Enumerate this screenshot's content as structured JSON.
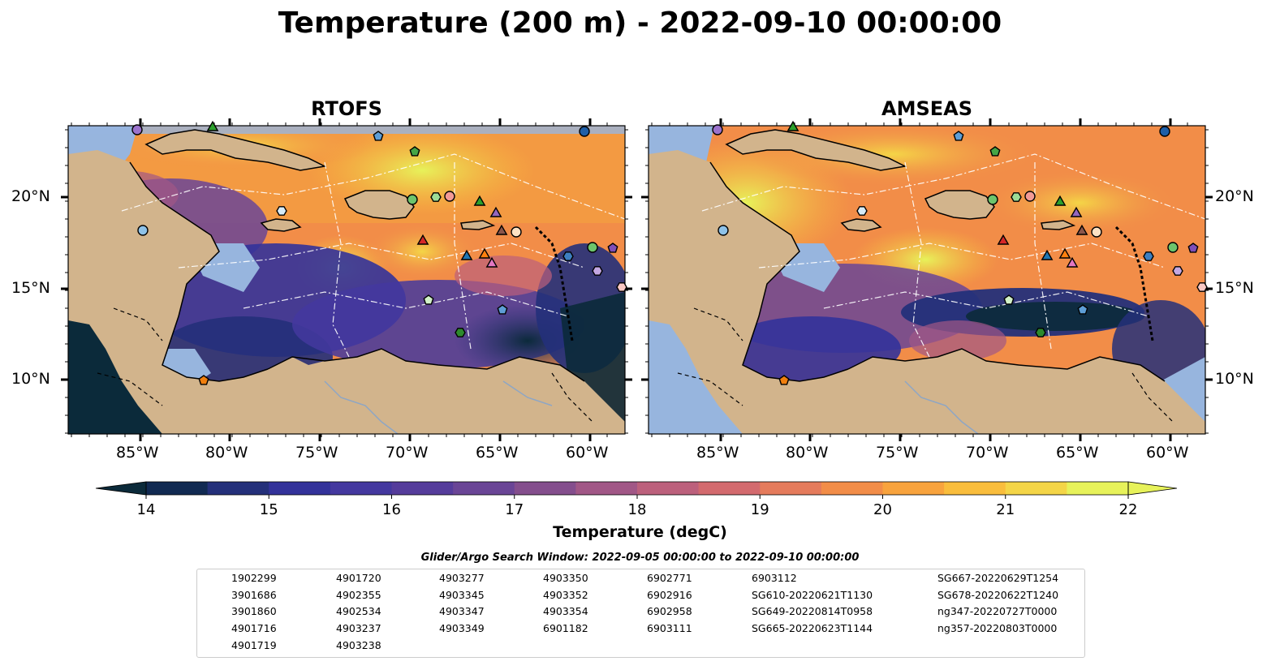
{
  "title": "Temperature (200 m) - 2022-09-10 00:00:00",
  "panels": [
    {
      "title": "RTOFS"
    },
    {
      "title": "AMSEAS"
    }
  ],
  "axes": {
    "lon_ticks": [
      "85°W",
      "80°W",
      "75°W",
      "70°W",
      "65°W",
      "60°W"
    ],
    "lat_ticks": [
      "20°N",
      "15°N",
      "10°N"
    ]
  },
  "colorbar": {
    "label": "Temperature (degC)",
    "ticks": [
      "14",
      "15",
      "16",
      "17",
      "18",
      "19",
      "20",
      "21",
      "22"
    ],
    "range": [
      14,
      22
    ],
    "extend": "both",
    "colors": [
      "#0b2a3a",
      "#112a52",
      "#24307a",
      "#33329a",
      "#44389f",
      "#553c9b",
      "#6a4596",
      "#844e8d",
      "#a15786",
      "#bc607c",
      "#d36a6e",
      "#e57b5c",
      "#f28d48",
      "#f8a33d",
      "#f9bd3c",
      "#f4d547",
      "#e7f25a"
    ]
  },
  "search_window": "Glider/Argo Search Window: 2022-09-05 00:00:00 to 2022-09-10 00:00:00",
  "legend": [
    {
      "label": "1902299",
      "marker": "circle",
      "color": "#1f5fa8"
    },
    {
      "label": "3901686",
      "marker": "hexagon",
      "color": "#3d7fc0"
    },
    {
      "label": "3901860",
      "marker": "pentagon",
      "color": "#5e9ed6"
    },
    {
      "label": "4901716",
      "marker": "circle",
      "color": "#8ec2e8"
    },
    {
      "label": "4901719",
      "marker": "hexagon",
      "color": "#d6ebf8"
    },
    {
      "label": "4901720",
      "marker": "pentagon",
      "color": "#f07f0e"
    },
    {
      "label": "4902355",
      "marker": "circle",
      "color": "#f7953a"
    },
    {
      "label": "4902534",
      "marker": "hexagon",
      "color": "#f9b26c"
    },
    {
      "label": "4903237",
      "marker": "pentagon",
      "color": "#fccb98"
    },
    {
      "label": "4903238",
      "marker": "circle",
      "color": "#fde2c4"
    },
    {
      "label": "4903277",
      "marker": "hexagon",
      "color": "#2d8a2d"
    },
    {
      "label": "4903345",
      "marker": "pentagon",
      "color": "#46a546"
    },
    {
      "label": "4903347",
      "marker": "circle",
      "color": "#6cc46c"
    },
    {
      "label": "4903349",
      "marker": "hexagon",
      "color": "#9ddc96"
    },
    {
      "label": "4903350",
      "marker": "pentagon",
      "color": "#d2f1c8"
    },
    {
      "label": "4903352",
      "marker": "circle",
      "color": "#d62728"
    },
    {
      "label": "4903354",
      "marker": "hexagon",
      "color": "#e0474a"
    },
    {
      "label": "6901182",
      "marker": "pentagon",
      "color": "#eb6e6e"
    },
    {
      "label": "6902771",
      "marker": "circle",
      "color": "#f29a96"
    },
    {
      "label": "6902916",
      "marker": "hexagon",
      "color": "#f9c8c4"
    },
    {
      "label": "6902958",
      "marker": "pentagon",
      "color": "#7f4fb8"
    },
    {
      "label": "6903111",
      "marker": "circle",
      "color": "#9b72cc"
    },
    {
      "label": "6903112",
      "marker": "hexagon",
      "color": "#c4a8e2"
    },
    {
      "label": "SG610-20220621T1130",
      "marker": "triangle",
      "color": "#1f77b4"
    },
    {
      "label": "SG649-20220814T0958",
      "marker": "triangle",
      "color": "#ff7f0e"
    },
    {
      "label": "SG665-20220623T1144",
      "marker": "triangle",
      "color": "#2ca02c"
    },
    {
      "label": "SG667-20220629T1254",
      "marker": "triangle",
      "color": "#d62728"
    },
    {
      "label": "SG678-20220622T1240",
      "marker": "triangle",
      "color": "#9467bd"
    },
    {
      "label": "ng347-20220727T0000",
      "marker": "triangle",
      "color": "#8c564b"
    },
    {
      "label": "ng357-20220803T0000",
      "marker": "triangle",
      "color": "#e377c2"
    }
  ]
}
